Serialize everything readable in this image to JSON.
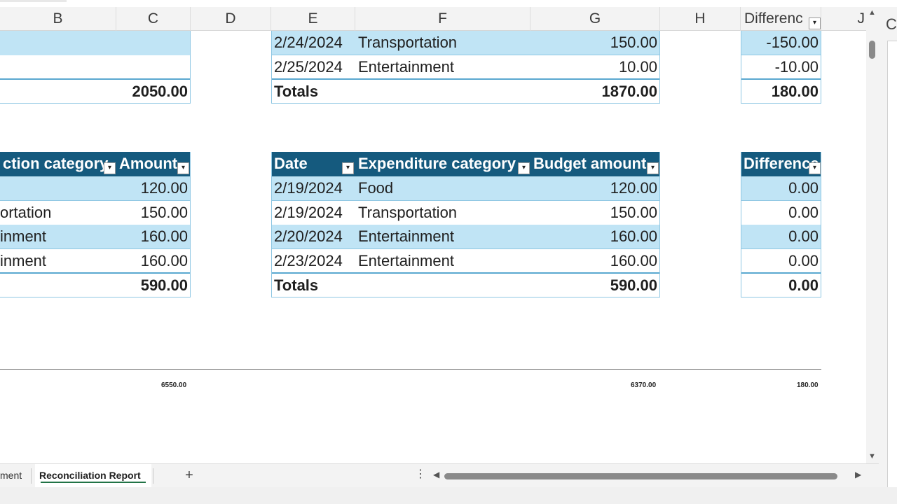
{
  "columns": {
    "b": "B",
    "c": "C",
    "d": "D",
    "e": "E",
    "f": "F",
    "g": "G",
    "h": "H",
    "i": "Differenc",
    "j": "J"
  },
  "top_left_table": {
    "totals_amount": "2050.00"
  },
  "top_middle_table": {
    "rows": [
      {
        "date": "2/24/2024",
        "category": "Transportation",
        "amount": "150.00"
      },
      {
        "date": "2/25/2024",
        "category": "Entertainment",
        "amount": "10.00"
      }
    ],
    "totals_label": "Totals",
    "totals_amount": "1870.00"
  },
  "top_right_table": {
    "rows": [
      "-150.00",
      "-10.00"
    ],
    "totals": "180.00"
  },
  "bottom_left_table": {
    "headers": {
      "category": "ction category",
      "amount": "Amount"
    },
    "rows": [
      {
        "category": "",
        "amount": "120.00"
      },
      {
        "category": "ortation",
        "amount": "150.00"
      },
      {
        "category": "inment",
        "amount": "160.00"
      },
      {
        "category": "inment",
        "amount": "160.00"
      }
    ],
    "totals_amount": "590.00"
  },
  "bottom_middle_table": {
    "headers": {
      "date": "Date",
      "category": "Expenditure category",
      "amount": "Budget amount"
    },
    "rows": [
      {
        "date": "2/19/2024",
        "category": "Food",
        "amount": "120.00"
      },
      {
        "date": "2/19/2024",
        "category": "Transportation",
        "amount": "150.00"
      },
      {
        "date": "2/20/2024",
        "category": "Entertainment",
        "amount": "160.00"
      },
      {
        "date": "2/23/2024",
        "category": "Entertainment",
        "amount": "160.00"
      }
    ],
    "totals_label": "Totals",
    "totals_amount": "590.00"
  },
  "bottom_right_table": {
    "header": "Difference",
    "rows": [
      "0.00",
      "0.00",
      "0.00",
      "0.00"
    ],
    "totals": "0.00"
  },
  "summary": {
    "left": "6550.00",
    "middle": "6370.00",
    "right": "180.00"
  },
  "sheet_tabs": {
    "previous": "ment",
    "active": "Reconciliation Report",
    "add": "+",
    "more": "⋮"
  },
  "right_pane": {
    "letter": "C"
  },
  "colors": {
    "header_fill": "#155a7e",
    "band_fill": "#c0e4f5",
    "active_tab_underline": "#217346"
  }
}
